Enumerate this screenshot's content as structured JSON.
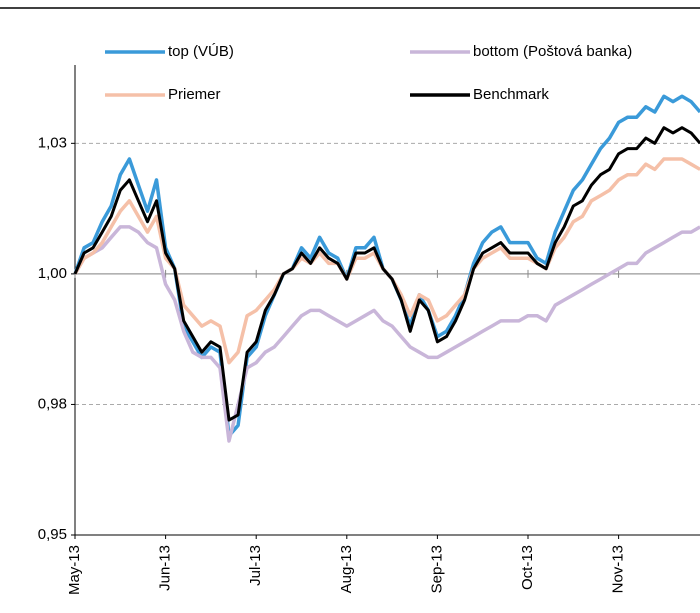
{
  "chart_data": {
    "type": "line",
    "categories": [
      "May-13",
      null,
      null,
      null,
      null,
      null,
      null,
      null,
      null,
      null,
      "Jun-13",
      null,
      null,
      null,
      null,
      null,
      null,
      null,
      null,
      null,
      "Jul-13",
      null,
      null,
      null,
      null,
      null,
      null,
      null,
      null,
      null,
      "Aug-13",
      null,
      null,
      null,
      null,
      null,
      null,
      null,
      null,
      null,
      "Sep-13",
      null,
      null,
      null,
      null,
      null,
      null,
      null,
      null,
      null,
      "Oct-13",
      null,
      null,
      null,
      null,
      null,
      null,
      null,
      null,
      null,
      "Nov-13",
      null,
      null,
      null,
      null,
      null,
      null,
      null,
      null,
      null
    ],
    "series": [
      {
        "name": "top (VÚB)",
        "color": "#3a9ad9",
        "values": [
          1.0,
          1.005,
          1.006,
          1.01,
          1.013,
          1.019,
          1.022,
          1.017,
          1.012,
          1.018,
          1.005,
          1.001,
          0.99,
          0.987,
          0.984,
          0.986,
          0.985,
          0.969,
          0.971,
          0.984,
          0.986,
          0.992,
          0.996,
          1.0,
          1.001,
          1.005,
          1.003,
          1.007,
          1.004,
          1.003,
          0.999,
          1.005,
          1.005,
          1.007,
          1.001,
          0.999,
          0.995,
          0.99,
          0.996,
          0.993,
          0.988,
          0.989,
          0.992,
          0.996,
          1.002,
          1.006,
          1.008,
          1.009,
          1.006,
          1.006,
          1.006,
          1.003,
          1.002,
          1.008,
          1.012,
          1.016,
          1.018,
          1.021,
          1.024,
          1.026,
          1.029,
          1.03,
          1.03,
          1.032,
          1.031,
          1.034,
          1.033,
          1.034,
          1.033,
          1.031
        ]
      },
      {
        "name": "bottom (Poštová banka)",
        "color": "#c9b6d9",
        "values": [
          1.0,
          1.003,
          1.004,
          1.005,
          1.007,
          1.009,
          1.009,
          1.008,
          1.006,
          1.005,
          0.998,
          0.995,
          0.989,
          0.985,
          0.984,
          0.984,
          0.982,
          0.968,
          0.975,
          0.982,
          0.983,
          0.985,
          0.986,
          0.988,
          0.99,
          0.992,
          0.993,
          0.993,
          0.992,
          0.991,
          0.99,
          0.991,
          0.992,
          0.993,
          0.991,
          0.99,
          0.988,
          0.986,
          0.985,
          0.984,
          0.984,
          0.985,
          0.986,
          0.987,
          0.988,
          0.989,
          0.99,
          0.991,
          0.991,
          0.991,
          0.992,
          0.992,
          0.991,
          0.994,
          0.995,
          0.996,
          0.997,
          0.998,
          0.999,
          1.0,
          1.001,
          1.002,
          1.002,
          1.004,
          1.005,
          1.006,
          1.007,
          1.008,
          1.008,
          1.009
        ]
      },
      {
        "name": "Priemer",
        "color": "#f5c0a8",
        "values": [
          1.0,
          1.003,
          1.004,
          1.006,
          1.009,
          1.012,
          1.014,
          1.011,
          1.008,
          1.011,
          1.003,
          1.001,
          0.994,
          0.992,
          0.99,
          0.991,
          0.99,
          0.983,
          0.985,
          0.992,
          0.993,
          0.995,
          0.997,
          1.0,
          1.001,
          1.003,
          1.002,
          1.004,
          1.002,
          1.002,
          0.999,
          1.003,
          1.003,
          1.004,
          1.001,
          0.999,
          0.996,
          0.992,
          0.996,
          0.995,
          0.991,
          0.992,
          0.994,
          0.996,
          1.001,
          1.003,
          1.004,
          1.005,
          1.003,
          1.003,
          1.003,
          1.002,
          1.001,
          1.005,
          1.007,
          1.01,
          1.011,
          1.014,
          1.015,
          1.016,
          1.018,
          1.019,
          1.019,
          1.021,
          1.02,
          1.022,
          1.022,
          1.022,
          1.021,
          1.02
        ]
      },
      {
        "name": "Benchmark",
        "color": "#000000",
        "values": [
          1.0,
          1.004,
          1.005,
          1.008,
          1.011,
          1.016,
          1.018,
          1.014,
          1.01,
          1.014,
          1.004,
          1.001,
          0.991,
          0.988,
          0.985,
          0.987,
          0.986,
          0.972,
          0.973,
          0.985,
          0.987,
          0.993,
          0.996,
          1.0,
          1.001,
          1.004,
          1.002,
          1.005,
          1.003,
          1.002,
          0.999,
          1.004,
          1.004,
          1.005,
          1.001,
          0.999,
          0.995,
          0.989,
          0.995,
          0.993,
          0.987,
          0.988,
          0.991,
          0.995,
          1.001,
          1.004,
          1.005,
          1.006,
          1.004,
          1.004,
          1.004,
          1.002,
          1.001,
          1.006,
          1.009,
          1.013,
          1.014,
          1.017,
          1.019,
          1.02,
          1.023,
          1.024,
          1.024,
          1.026,
          1.025,
          1.028,
          1.027,
          1.028,
          1.027,
          1.025
        ]
      }
    ],
    "ylim": [
      0.95,
      1.04
    ],
    "yticks": [
      {
        "value": 0.95,
        "label": "0,95"
      },
      {
        "value": 0.975,
        "label": "0,98"
      },
      {
        "value": 1.0,
        "label": "1,00"
      },
      {
        "value": 1.025,
        "label": "1,03"
      }
    ],
    "grid": true,
    "legend": "top"
  }
}
